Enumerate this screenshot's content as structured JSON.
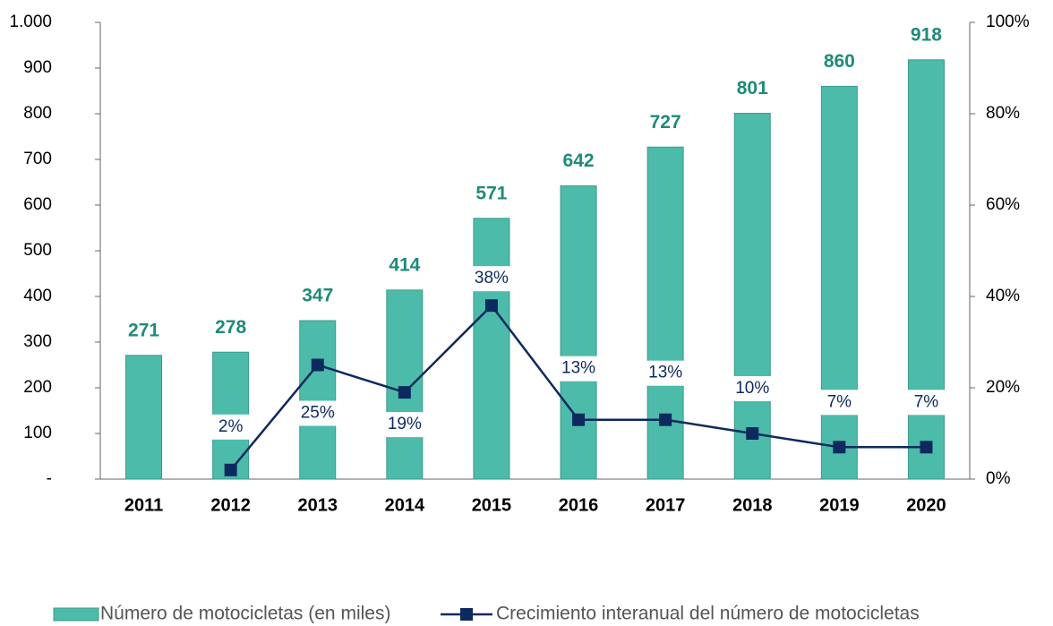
{
  "chart_data": {
    "type": "bar",
    "categories": [
      "2011",
      "2012",
      "2013",
      "2014",
      "2015",
      "2016",
      "2017",
      "2018",
      "2019",
      "2020"
    ],
    "series": [
      {
        "name": "Número de motocicletas (en miles)",
        "color": "#4dbbaa",
        "type": "bar",
        "values": [
          271,
          278,
          347,
          414,
          571,
          642,
          727,
          801,
          860,
          918
        ]
      },
      {
        "name": "Crecimiento interanual del número de motocicletas",
        "color": "#0d2a5e",
        "type": "line",
        "axis": "y2",
        "values": [
          null,
          2,
          25,
          19,
          38,
          13,
          13,
          10,
          7,
          7
        ],
        "value_labels": [
          null,
          "2%",
          "25%",
          "19%",
          "38%",
          "13%",
          "13%",
          "10%",
          "7%",
          "7%"
        ]
      }
    ],
    "ylim": [
      0,
      1000
    ],
    "yticks": [
      {
        "value": 0,
        "label": "-"
      },
      100,
      200,
      300,
      400,
      500,
      600,
      700,
      800,
      900,
      {
        "value": 1000,
        "label": "1.000"
      }
    ],
    "y2lim": [
      0,
      100
    ],
    "y2ticks": [
      {
        "value": 0,
        "label": "0%"
      },
      {
        "value": 20,
        "label": "20%"
      },
      {
        "value": 40,
        "label": "40%"
      },
      {
        "value": 60,
        "label": "60%"
      },
      {
        "value": 80,
        "label": "80%"
      },
      {
        "value": 100,
        "label": "100%"
      }
    ],
    "legend": "bottom"
  }
}
